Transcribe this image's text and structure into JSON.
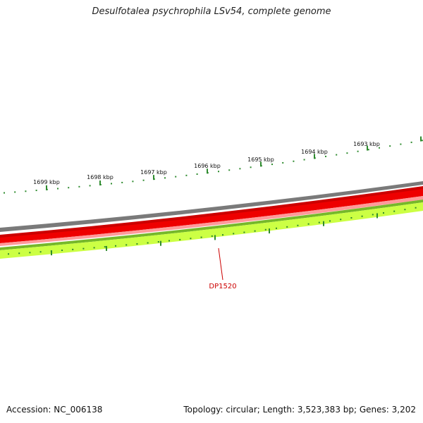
{
  "title": "Desulfotalea psychrophila LSv54, complete genome",
  "accession": "Accession: NC_006138",
  "summary": "Topology: circular; Length: 3,523,383 bp; Genes: 3,202",
  "colors": {
    "tick": "#2e8b2e",
    "gray_track": "#7a7a7a",
    "red_track": "#ee0000",
    "red_dark": "#cc0000",
    "pink_track": "#ff9a9a",
    "green_track": "#ccff44",
    "green_dark": "#76b82a",
    "gene_label": "#cc0000"
  },
  "scale_labels": [
    "1699 kbp",
    "1698 kbp",
    "1697 kbp",
    "1696 kbp",
    "1695 kbp",
    "1694 kbp",
    "1693 kbp"
  ],
  "gene": {
    "name": "DP1520"
  }
}
